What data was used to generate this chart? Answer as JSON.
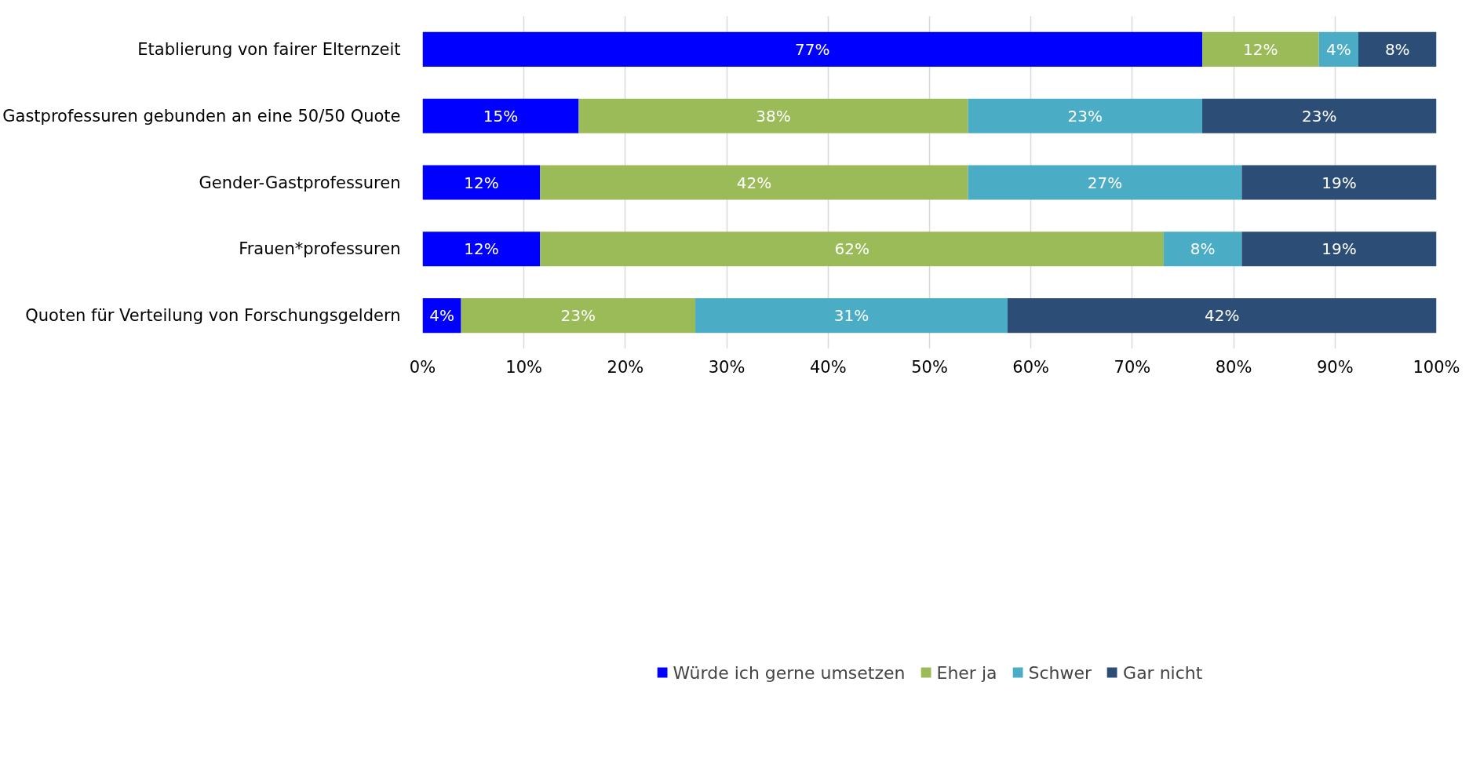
{
  "chart_data": {
    "type": "bar",
    "orientation": "horizontal",
    "stacked": true,
    "categories": [
      "Etablierung von fairer Elternzeit",
      "Gastprofessuren gebunden an eine 50/50 Quote",
      "Gender-Gastprofessuren",
      "Frauen*professuren",
      "Quoten für Verteilung von Forschungsgeldern"
    ],
    "series": [
      {
        "name": "Würde ich gerne umsetzen",
        "color": "#0000ff",
        "values": [
          76.9,
          15.4,
          11.6,
          11.6,
          3.8
        ],
        "value_labels": [
          "77%",
          "15%",
          "12%",
          "12%",
          "4%"
        ]
      },
      {
        "name": "Eher ja",
        "color": "#9bbb59",
        "values": [
          11.5,
          38.4,
          42.2,
          61.5,
          23.1
        ],
        "value_labels": [
          "12%",
          "38%",
          "42%",
          "62%",
          "23%"
        ]
      },
      {
        "name": "Schwer",
        "color": "#4bacc6",
        "values": [
          3.9,
          23.1,
          27.0,
          7.7,
          30.8
        ],
        "value_labels": [
          "4%",
          "23%",
          "27%",
          "8%",
          "31%"
        ]
      },
      {
        "name": "Gar nicht",
        "color": "#2c4d75",
        "values": [
          7.7,
          23.1,
          19.2,
          19.2,
          42.3
        ],
        "value_labels": [
          "8%",
          "23%",
          "19%",
          "19%",
          "42%"
        ]
      }
    ],
    "xlim": [
      0,
      100
    ],
    "xticks": [
      {
        "value": 0,
        "label": "0%"
      },
      {
        "value": 10,
        "label": "10%"
      },
      {
        "value": 20,
        "label": "20%"
      },
      {
        "value": 30,
        "label": "30%"
      },
      {
        "value": 40,
        "label": "40%"
      },
      {
        "value": 50,
        "label": "50%"
      },
      {
        "value": 60,
        "label": "60%"
      },
      {
        "value": 70,
        "label": "70%"
      },
      {
        "value": 80,
        "label": "80%"
      },
      {
        "value": 90,
        "label": "90%"
      },
      {
        "value": 100,
        "label": "100%"
      }
    ],
    "grid": "x",
    "legend": "bottom"
  }
}
